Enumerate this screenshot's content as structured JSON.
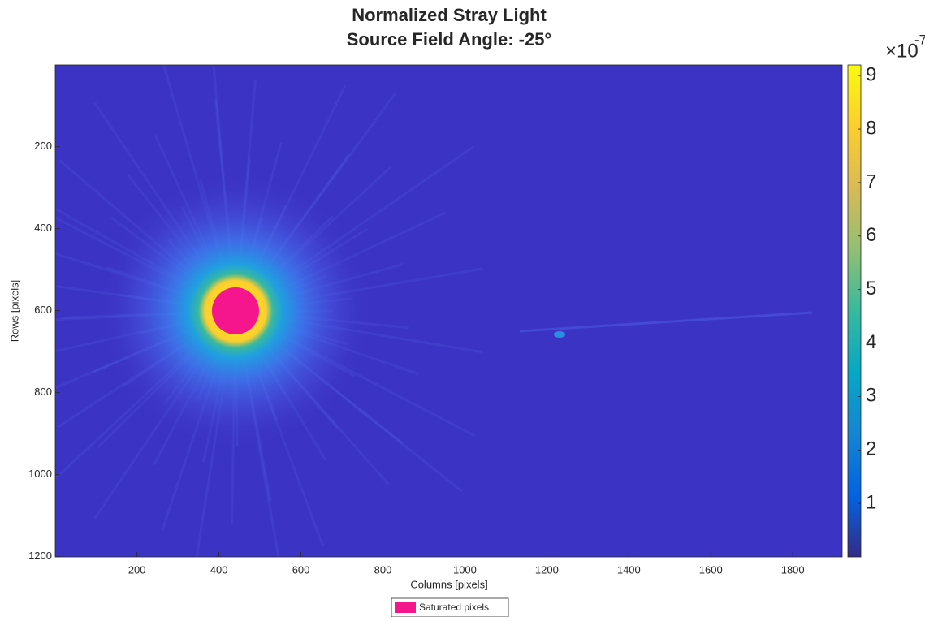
{
  "chart_data": {
    "type": "image",
    "title": [
      "Normalized Stray Light",
      "Source Field Angle: -25°"
    ],
    "xlabel": "Columns [pixels]",
    "ylabel": "Rows [pixels]",
    "xlim": [
      0.5,
      1920.5
    ],
    "ylim": [
      0.5,
      1200.5
    ],
    "y_reversed": true,
    "xticks": [
      200,
      400,
      600,
      800,
      1000,
      1200,
      1400,
      1600,
      1800
    ],
    "yticks": [
      200,
      400,
      600,
      800,
      1000,
      1200
    ],
    "colormap": "parula",
    "clim": [
      0,
      9.2
    ],
    "cticks": [
      1,
      2,
      3,
      4,
      5,
      6,
      7,
      8,
      9
    ],
    "colorbar_multiplier": {
      "base": "×10",
      "exponent": "-7"
    },
    "legend": {
      "name": "Saturated pixels",
      "color": "#f5158c",
      "location": "south-outside"
    }
  }
}
